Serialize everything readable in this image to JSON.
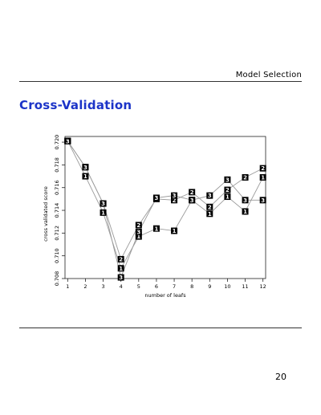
{
  "header": {
    "section": "Model Selection"
  },
  "slide": {
    "title": "Cross-Validation",
    "page_number": "20"
  },
  "chart_data": {
    "type": "line",
    "title": "",
    "xlabel": "number of leafs",
    "ylabel": "cross validated score",
    "x": [
      1,
      2,
      3,
      4,
      5,
      6,
      7,
      8,
      9,
      10,
      11,
      12
    ],
    "x_ticks": [
      "1",
      "2",
      "3",
      "4",
      "5",
      "6",
      "7",
      "8",
      "9",
      "10",
      "11",
      "12"
    ],
    "y_ticks": [
      "0.708",
      "0.710",
      "0.712",
      "0.714",
      "0.716",
      "0.718",
      "0.720"
    ],
    "ylim": [
      0.708,
      0.7205
    ],
    "xlim": [
      0.85,
      12.15
    ],
    "grid": false,
    "marker_style": "white digit on black square",
    "series": [
      {
        "marker": "1",
        "values": [
          0.7201,
          0.717,
          0.7138,
          0.7089,
          0.7117,
          0.7124,
          0.7122,
          0.7149,
          0.7137,
          0.7152,
          0.7139,
          0.7169
        ]
      },
      {
        "marker": "2",
        "values": [
          0.7201,
          0.7178,
          0.7146,
          0.7097,
          0.7127,
          0.715,
          0.7149,
          0.7156,
          0.7143,
          0.7158,
          0.7169,
          0.7177
        ]
      },
      {
        "marker": "3",
        "values": [
          0.7201,
          0.7178,
          0.7146,
          0.7081,
          0.7121,
          0.7151,
          0.7153,
          0.7149,
          0.7153,
          0.7167,
          0.7149,
          0.7149
        ]
      }
    ]
  }
}
